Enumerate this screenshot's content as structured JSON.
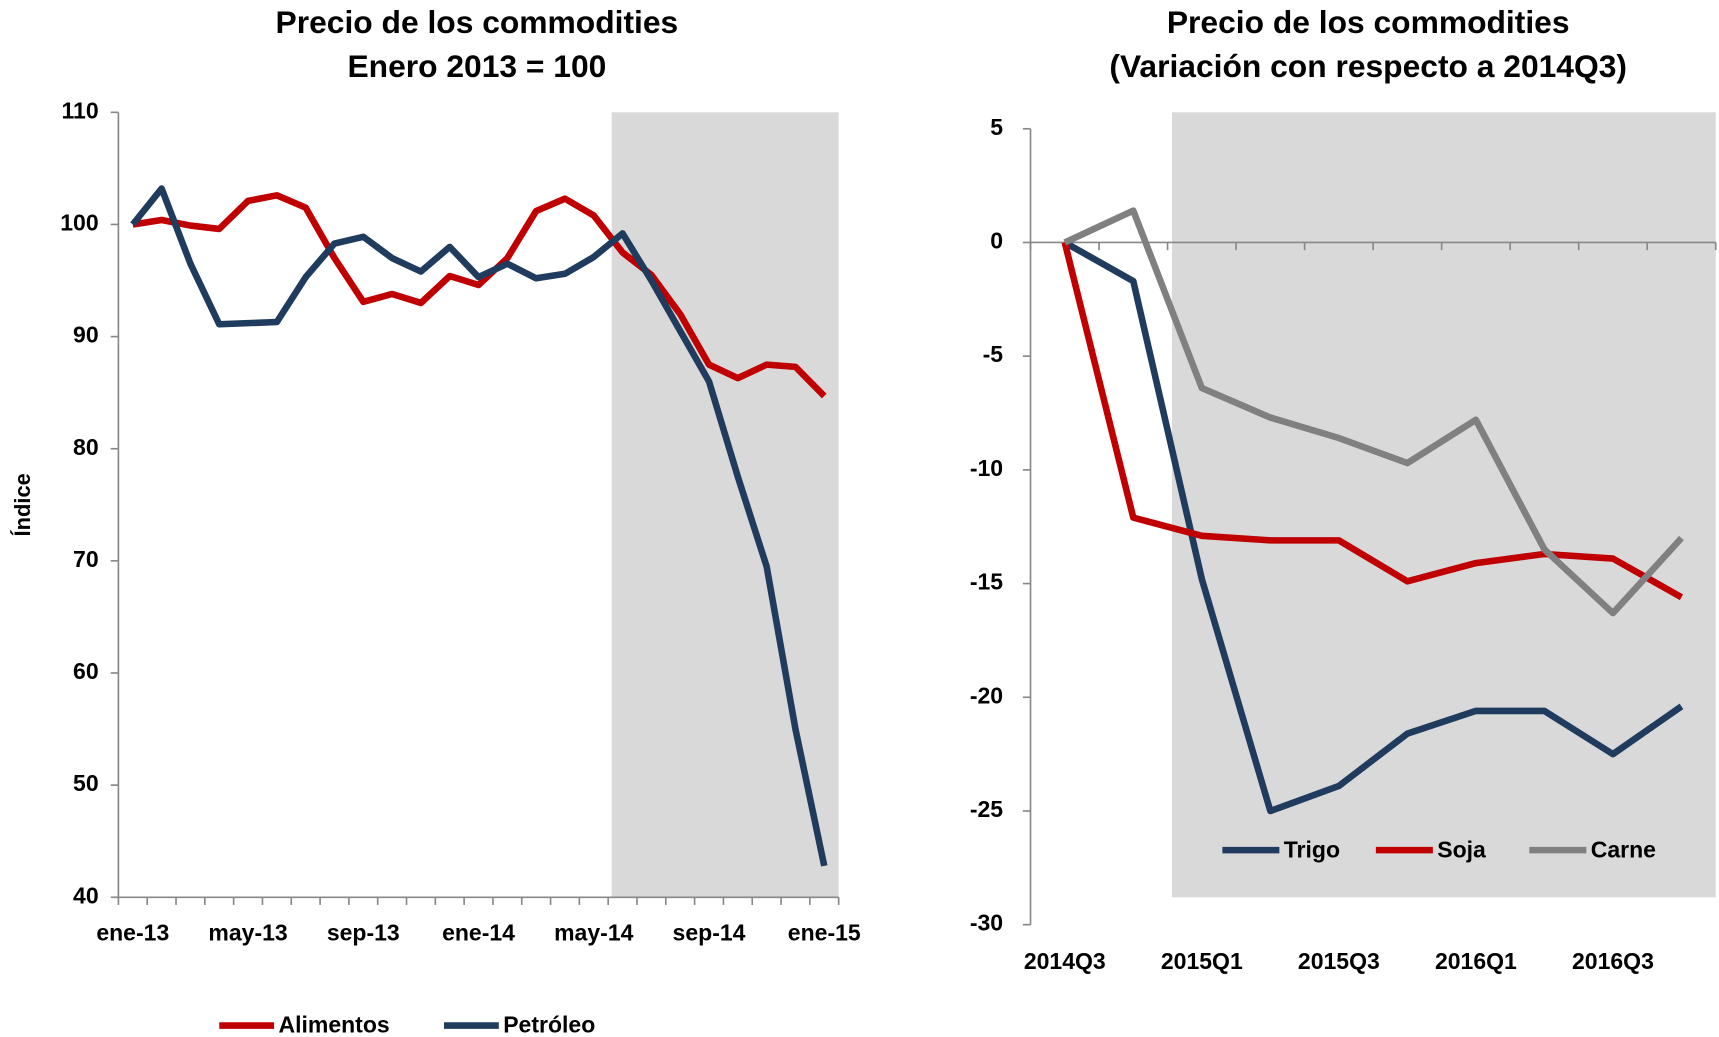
{
  "chart_data": [
    {
      "type": "line",
      "title": [
        "Precio de los commodities",
        "Enero 2013 = 100"
      ],
      "y_label": "Índice",
      "categories": [
        "ene-13",
        null,
        null,
        null,
        "may-13",
        null,
        null,
        null,
        "sep-13",
        null,
        null,
        null,
        "ene-14",
        null,
        null,
        null,
        "may-14",
        null,
        null,
        null,
        "sep-14",
        null,
        null,
        null,
        "ene-15"
      ],
      "series": [
        {
          "name": "Alimentos",
          "color": "#c00000",
          "values": [
            100,
            100.4,
            99.9,
            99.6,
            102.1,
            102.6,
            101.5,
            97,
            93.1,
            93.8,
            93,
            95.4,
            94.6,
            97,
            101.2,
            102.3,
            100.8,
            97.5,
            95.5,
            92,
            87.5,
            86.3,
            87.5,
            87.3,
            84.7
          ]
        },
        {
          "name": "Petróleo",
          "color": "#1f3b5e",
          "values": [
            100,
            103.2,
            96.5,
            91.1,
            91.2,
            91.3,
            95.3,
            98.3,
            98.9,
            97,
            95.8,
            98,
            95.3,
            96.5,
            95.2,
            95.6,
            97.1,
            99.2,
            95,
            90.5,
            86,
            77.5,
            69.5,
            55,
            42.8
          ]
        }
      ],
      "ylim": [
        40,
        110
      ],
      "yticks": [
        40,
        50,
        60,
        70,
        80,
        90,
        100,
        110
      ],
      "legend": "bottom"
    },
    {
      "type": "line",
      "title": [
        "Precio de los commodities",
        "(Variación con respecto a 2014Q3)"
      ],
      "categories": [
        "2014Q3",
        null,
        "2015Q1",
        null,
        "2015Q3",
        null,
        "2016Q1",
        null,
        "2016Q3",
        null
      ],
      "series": [
        {
          "name": "Trigo",
          "color": "#1f3b5e",
          "values": [
            0,
            -1.7,
            -14.8,
            -25,
            -23.9,
            -21.6,
            -20.6,
            -20.6,
            -22.5,
            -20.4
          ]
        },
        {
          "name": "Soja",
          "color": "#c00000",
          "values": [
            0,
            -12.1,
            -12.9,
            -13.1,
            -13.1,
            -14.9,
            -14.1,
            -13.7,
            -13.9,
            -15.6
          ]
        },
        {
          "name": "Carne",
          "color": "#808080",
          "values": [
            0,
            1.4,
            -6.4,
            -7.7,
            -8.6,
            -9.7,
            -7.8,
            -13.5,
            -16.3,
            -13.0
          ]
        }
      ],
      "ylim": [
        -30,
        5
      ],
      "yticks": [
        -30,
        -25,
        -20,
        -15,
        -10,
        -5,
        0,
        5
      ],
      "legend": "lower right"
    }
  ]
}
